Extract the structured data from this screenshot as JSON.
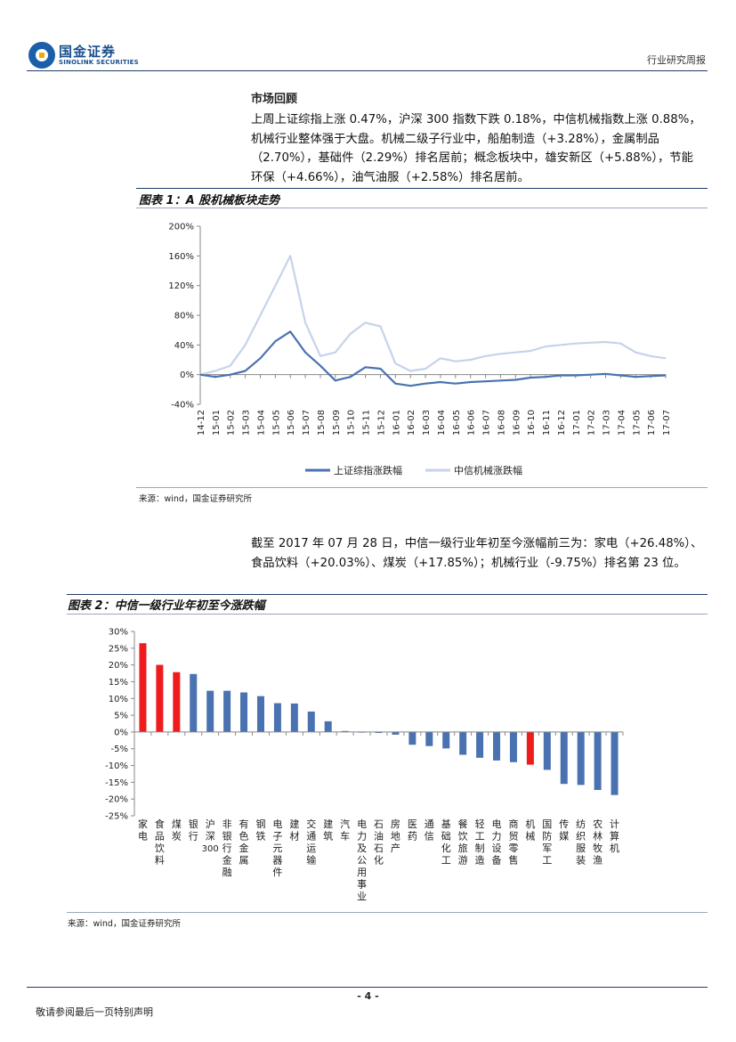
{
  "header": {
    "logo_cn": "国金证券",
    "logo_en": "SINOLINK SECURITIES",
    "report_type": "行业研究周报"
  },
  "section_title": "市场回顾",
  "paragraph1": "上周上证综指上涨 0.47%，沪深 300 指数下跌 0.18%，中信机械指数上涨 0.88%，机械行业整体强于大盘。机械二级子行业中，船舶制造（+3.28%），金属制品（2.70%），基础件（2.29%）排名居前；概念板块中，雄安新区（+5.88%），节能环保（+4.66%），油气油服（+2.58%）排名居前。",
  "figure1": {
    "title": "图表 1：A 股机械板块走势",
    "source": "来源：wind，国金证券研究所"
  },
  "paragraph2": "截至 2017 年 07 月 28 日，中信一级行业年初至今涨幅前三为：家电（+26.48%）、食品饮料（+20.03%）、煤炭（+17.85%）；机械行业（-9.75%）排名第 23 位。",
  "figure2": {
    "title": "图表 2：中信一级行业年初至今涨跌幅",
    "source": "来源：wind，国金证券研究所"
  },
  "footer": {
    "page": "- 4 -",
    "disclaimer": "敬请参阅最后一页特别声明"
  },
  "colors": {
    "brand": "#1a4f8f",
    "series1": "#4a72b0",
    "series2": "#c5d3ea",
    "highlight": "#ee1c1c"
  },
  "chart_data": [
    {
      "type": "line",
      "title": "图表 1：A 股机械板块走势",
      "ylabel": "",
      "ylim": [
        -40,
        200
      ],
      "yticks": [
        "200%",
        "160%",
        "120%",
        "80%",
        "40%",
        "0%",
        "-40%"
      ],
      "x": [
        "14-12",
        "15-01",
        "15-02",
        "15-03",
        "15-04",
        "15-05",
        "15-06",
        "15-07",
        "15-08",
        "15-09",
        "15-10",
        "15-11",
        "15-12",
        "16-01",
        "16-02",
        "16-03",
        "16-04",
        "16-05",
        "16-06",
        "16-07",
        "16-08",
        "16-09",
        "16-10",
        "16-11",
        "16-12",
        "17-01",
        "17-02",
        "17-03",
        "17-04",
        "17-05",
        "17-06",
        "17-07"
      ],
      "legend_position": "bottom",
      "series": [
        {
          "name": "上证综指涨跌幅",
          "values": [
            0,
            -3,
            0,
            5,
            22,
            45,
            58,
            30,
            12,
            -8,
            -3,
            10,
            8,
            -12,
            -15,
            -12,
            -10,
            -12,
            -10,
            -9,
            -8,
            -7,
            -4,
            -3,
            -1,
            -1,
            0,
            1,
            -1,
            -3,
            -2,
            -1
          ]
        },
        {
          "name": "中信机械涨跌幅",
          "values": [
            0,
            5,
            12,
            40,
            80,
            120,
            160,
            70,
            25,
            30,
            55,
            70,
            65,
            15,
            5,
            8,
            22,
            18,
            20,
            25,
            28,
            30,
            32,
            38,
            40,
            42,
            43,
            44,
            42,
            30,
            25,
            22
          ]
        }
      ]
    },
    {
      "type": "bar",
      "title": "图表 2：中信一级行业年初至今涨跌幅",
      "ylim": [
        -25,
        30
      ],
      "yticks": [
        "30%",
        "25%",
        "20%",
        "15%",
        "10%",
        "5%",
        "0%",
        "-5%",
        "-10%",
        "-15%",
        "-20%",
        "-25%"
      ],
      "categories": [
        "家电",
        "食品饮料",
        "煤炭",
        "银行",
        "沪深300",
        "非银行金融",
        "有色金属",
        "钢铁",
        "电子元器件",
        "建材",
        "交通运输",
        "建筑",
        "汽车",
        "电力及公用事业",
        "石油石化",
        "房地产",
        "医药",
        "通信",
        "基础化工",
        "餐饮旅游",
        "轻工制造",
        "电力设备",
        "商贸零售",
        "机械",
        "国防军工",
        "传媒",
        "纺织服装",
        "农林牧渔",
        "计算机"
      ],
      "values": [
        26.48,
        20.03,
        17.85,
        17.3,
        12.3,
        12.3,
        11.8,
        10.7,
        8.6,
        8.5,
        6.1,
        3.2,
        0.3,
        -0.2,
        -0.3,
        -0.8,
        -3.8,
        -4.2,
        -4.9,
        -6.8,
        -7.7,
        -8.5,
        -9.0,
        -9.75,
        -11.3,
        -15.5,
        -15.8,
        -17.3,
        -18.8
      ],
      "highlight": [
        "家电",
        "食品饮料",
        "煤炭",
        "机械"
      ]
    }
  ]
}
